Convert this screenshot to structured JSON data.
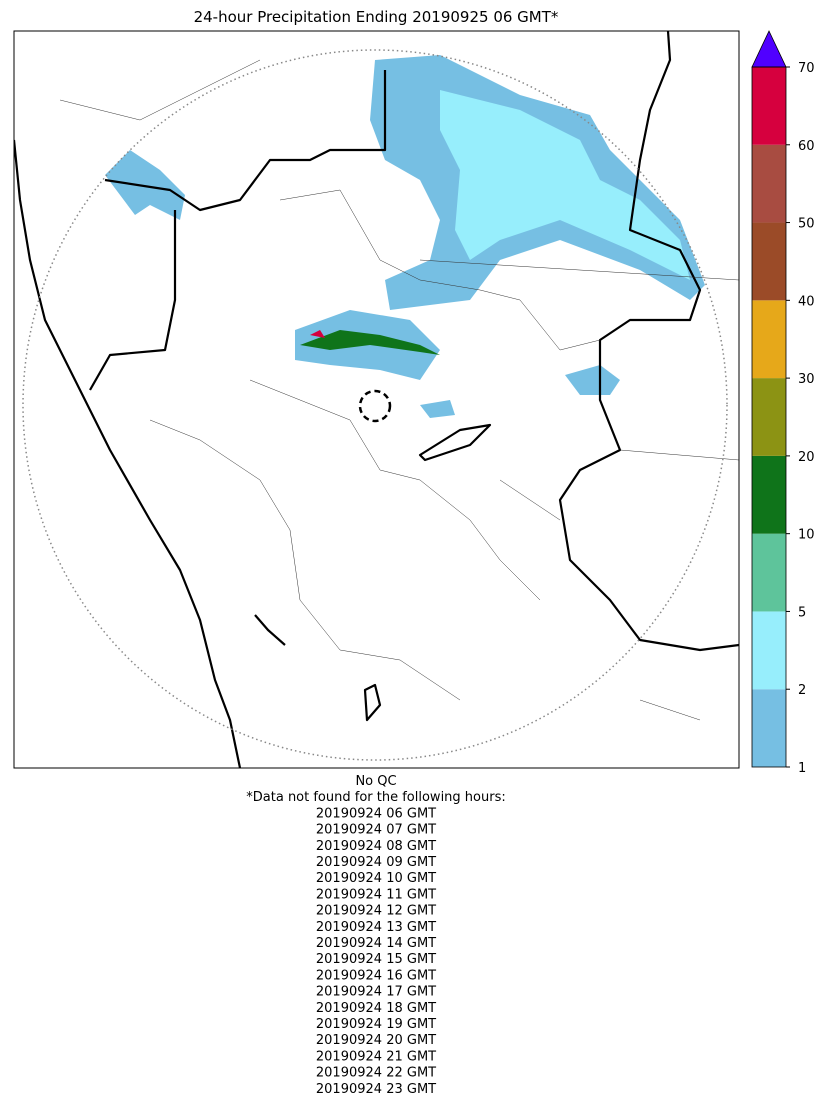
{
  "title": "24-hour Precipitation Ending 20190925 06 GMT*",
  "colorbar": {
    "bounds": [
      1,
      2,
      5,
      10,
      20,
      30,
      40,
      50,
      60,
      70
    ],
    "colors": [
      "#76bfe3",
      "#97eefc",
      "#5ec49b",
      "#0f741a",
      "#8c9314",
      "#e6a81a",
      "#9b4b28",
      "#a84c41",
      "#d6003e"
    ],
    "over_color": "#5000ff"
  },
  "footer": {
    "qc": "No QC",
    "note": "*Data not found for the following hours:",
    "hours": [
      "20190924 06 GMT",
      "20190924 07 GMT",
      "20190924 08 GMT",
      "20190924 09 GMT",
      "20190924 10 GMT",
      "20190924 11 GMT",
      "20190924 12 GMT",
      "20190924 13 GMT",
      "20190924 14 GMT",
      "20190924 15 GMT",
      "20190924 16 GMT",
      "20190924 17 GMT",
      "20190924 18 GMT",
      "20190924 19 GMT",
      "20190924 20 GMT",
      "20190924 21 GMT",
      "20190924 22 GMT",
      "20190924 23 GMT"
    ]
  }
}
